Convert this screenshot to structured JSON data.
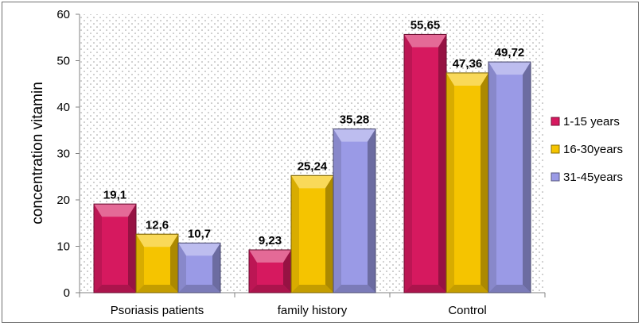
{
  "chart_data": {
    "type": "bar",
    "title": "",
    "xlabel": "",
    "ylabel": "concentration vitamin",
    "categories": [
      "Psoriasis patients",
      "family history",
      "Control"
    ],
    "series": [
      {
        "name": "1-15 years",
        "values": [
          19.1,
          9.23,
          55.65
        ],
        "labels": [
          "19,1",
          "9,23",
          "55,65"
        ],
        "color": "#d6195f"
      },
      {
        "name": "16-30years",
        "values": [
          12.6,
          25.24,
          47.36
        ],
        "labels": [
          "12,6",
          "25,24",
          "47,36"
        ],
        "color": "#f5c400"
      },
      {
        "name": "31-45years",
        "values": [
          10.7,
          35.28,
          49.72
        ],
        "labels": [
          "10,7",
          "35,28",
          "49,72"
        ],
        "color": "#9a9ae6"
      }
    ],
    "ylim": [
      0,
      60
    ],
    "yticks": [
      "0",
      "10",
      "20",
      "30",
      "40",
      "50",
      "60"
    ],
    "legend": "right",
    "grid": false,
    "plot_background": "dotted"
  }
}
